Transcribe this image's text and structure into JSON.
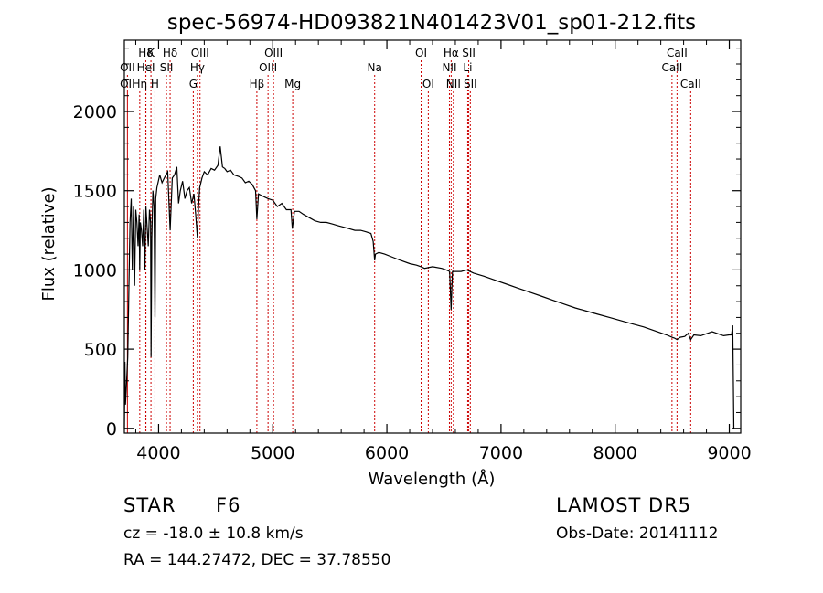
{
  "chart_data": {
    "type": "line",
    "title": "spec-56974-HD093821N401423V01_sp01-212.fits",
    "xlabel": "Wavelength (Å)",
    "ylabel": "Flux (relative)",
    "xlim": [
      3700,
      9100
    ],
    "ylim": [
      -30,
      2450
    ],
    "xticks": [
      4000,
      5000,
      6000,
      7000,
      8000,
      9000
    ],
    "yticks": [
      0,
      500,
      1000,
      1500,
      2000
    ],
    "line_color": "#000000",
    "marker_color": "#cc0000",
    "series": [
      {
        "x": [
          3700,
          3705,
          3710,
          3720,
          3730,
          3740,
          3750,
          3760,
          3770,
          3780,
          3790,
          3800,
          3810,
          3820,
          3830,
          3835,
          3840,
          3850,
          3860,
          3870,
          3880,
          3889,
          3900,
          3910,
          3920,
          3930,
          3934,
          3940,
          3950,
          3960,
          3968,
          3975,
          3985,
          3995,
          4010,
          4030,
          4050,
          4080,
          4101,
          4120,
          4140,
          4160,
          4175,
          4190,
          4210,
          4230,
          4250,
          4270,
          4290,
          4310,
          4325,
          4340,
          4350,
          4360,
          4380,
          4400,
          4430,
          4460,
          4490,
          4520,
          4540,
          4560,
          4580,
          4600,
          4630,
          4660,
          4700,
          4730,
          4760,
          4790,
          4820,
          4850,
          4861,
          4875,
          4900,
          4930,
          4960,
          5000,
          5040,
          5080,
          5120,
          5160,
          5172,
          5190,
          5230,
          5270,
          5320,
          5370,
          5420,
          5470,
          5520,
          5570,
          5620,
          5670,
          5720,
          5770,
          5820,
          5860,
          5880,
          5893,
          5900,
          5930,
          5980,
          6050,
          6120,
          6200,
          6260,
          6300,
          6330,
          6400,
          6480,
          6520,
          6550,
          6563,
          6575,
          6600,
          6650,
          6700,
          6760,
          6850,
          6950,
          7050,
          7150,
          7250,
          7350,
          7450,
          7550,
          7650,
          7750,
          7850,
          7950,
          8050,
          8150,
          8250,
          8350,
          8450,
          8498,
          8520,
          8542,
          8570,
          8610,
          8640,
          8662,
          8690,
          8750,
          8850,
          8950,
          9000,
          9020,
          9030,
          9040
        ],
        "y": [
          0,
          420,
          150,
          300,
          450,
          900,
          1300,
          1450,
          1000,
          1400,
          900,
          1380,
          1300,
          1150,
          1350,
          1000,
          1300,
          1250,
          1150,
          1380,
          1000,
          1400,
          1260,
          1150,
          1380,
          1300,
          450,
          1200,
          1500,
          1400,
          700,
          1450,
          1520,
          1550,
          1600,
          1550,
          1580,
          1620,
          1250,
          1580,
          1600,
          1650,
          1420,
          1500,
          1560,
          1450,
          1500,
          1520,
          1420,
          1480,
          1350,
          1200,
          1400,
          1520,
          1580,
          1620,
          1600,
          1640,
          1630,
          1660,
          1780,
          1650,
          1640,
          1620,
          1630,
          1600,
          1590,
          1580,
          1550,
          1560,
          1540,
          1500,
          1320,
          1480,
          1470,
          1460,
          1450,
          1440,
          1400,
          1420,
          1380,
          1380,
          1260,
          1370,
          1370,
          1350,
          1330,
          1310,
          1300,
          1300,
          1290,
          1280,
          1270,
          1260,
          1250,
          1250,
          1240,
          1230,
          1180,
          1060,
          1100,
          1110,
          1100,
          1080,
          1060,
          1040,
          1030,
          1020,
          1010,
          1020,
          1010,
          1000,
          990,
          750,
          990,
          990,
          990,
          1000,
          980,
          960,
          935,
          910,
          885,
          860,
          835,
          810,
          785,
          760,
          740,
          720,
          700,
          680,
          660,
          640,
          615,
          590,
          575,
          570,
          560,
          575,
          580,
          600,
          560,
          590,
          585,
          610,
          585,
          590,
          590,
          650,
          0
        ]
      }
    ],
    "lines": [
      {
        "label": "Hδ",
        "x": 3888,
        "row": 1
      },
      {
        "label": "K",
        "x": 3933,
        "row": 1
      },
      {
        "label": "Hδ",
        "x": 4101,
        "row": 1
      },
      {
        "label": "OIII",
        "x": 4363,
        "row": 1
      },
      {
        "label": "OIII",
        "x": 5007,
        "row": 1
      },
      {
        "label": "OI",
        "x": 6300,
        "row": 1
      },
      {
        "label": "Hα",
        "x": 6563,
        "row": 1
      },
      {
        "label": "SII",
        "x": 6717,
        "row": 1
      },
      {
        "label": "CaII",
        "x": 8542,
        "row": 1
      },
      {
        "label": "OII",
        "x": 3727,
        "row": 2
      },
      {
        "label": "HeI",
        "x": 3889,
        "row": 2
      },
      {
        "label": "SII",
        "x": 4069,
        "row": 2
      },
      {
        "label": "Hγ",
        "x": 4340,
        "row": 2
      },
      {
        "label": "OIII",
        "x": 4959,
        "row": 2
      },
      {
        "label": "Na",
        "x": 5893,
        "row": 2
      },
      {
        "label": "NII",
        "x": 6548,
        "row": 2
      },
      {
        "label": "Li",
        "x": 6708,
        "row": 2
      },
      {
        "label": "CaII",
        "x": 8498,
        "row": 2
      },
      {
        "label": "OII",
        "x": 3727,
        "row": 3
      },
      {
        "label": "Hη",
        "x": 3835,
        "row": 3
      },
      {
        "label": "H",
        "x": 3968,
        "row": 3
      },
      {
        "label": "G",
        "x": 4304,
        "row": 3
      },
      {
        "label": "Hβ",
        "x": 4861,
        "row": 3
      },
      {
        "label": "Mg",
        "x": 5175,
        "row": 3
      },
      {
        "label": "OI",
        "x": 6363,
        "row": 3
      },
      {
        "label": "NII",
        "x": 6583,
        "row": 3
      },
      {
        "label": "SII",
        "x": 6731,
        "row": 3
      },
      {
        "label": "CaII",
        "x": 8662,
        "row": 3
      }
    ]
  },
  "info": {
    "object_type": "STAR",
    "subclass": "F6",
    "survey": "LAMOST DR5",
    "redshift": "cz = -18.0 ± 10.8 km/s",
    "obs_date": "Obs-Date: 20141112",
    "coords": "RA = 144.27472, DEC =  37.78550"
  }
}
